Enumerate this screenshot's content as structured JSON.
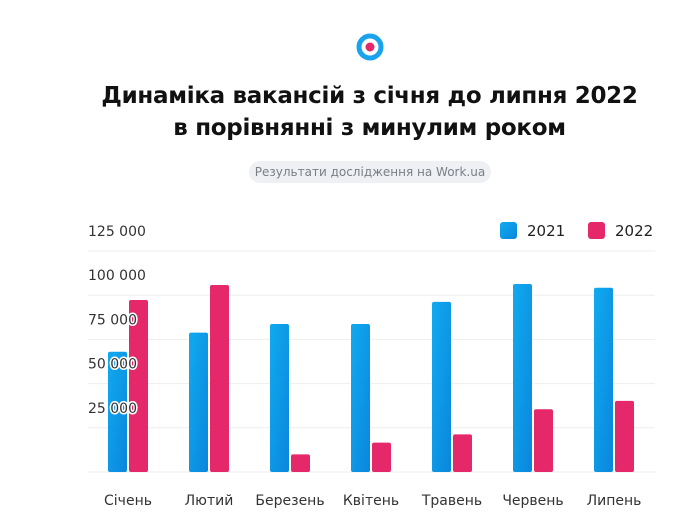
{
  "header": {
    "logo_icon": "target-icon",
    "title_line1": "Динаміка вакансій з січня до липня 2022",
    "title_line2": "в порівнянні з минулим роком",
    "subtitle": "Результати дослідження на Work.ua"
  },
  "colors": {
    "s2021": "#0a9be8",
    "s2022": "#e4286a",
    "grid": "#eeeeee"
  },
  "chart_data": {
    "type": "bar",
    "title": "Динаміка вакансій з січня до липня 2022 в порівнянні з минулим роком",
    "xlabel": "",
    "ylabel": "",
    "ylim": [
      0,
      125000
    ],
    "yticks": [
      25000,
      50000,
      75000,
      100000,
      125000
    ],
    "ytick_labels": [
      "25 000",
      "50 000",
      "75 000",
      "100 000",
      "125 000"
    ],
    "grid": true,
    "legend_position": "top-right",
    "categories": [
      "Січень",
      "Лютий",
      "Березень",
      "Квітень",
      "Травень",
      "Червень",
      "Липень"
    ],
    "series": [
      {
        "name": "2021",
        "values": [
          68000,
          78800,
          83700,
          83700,
          96200,
          106300,
          104200
        ]
      },
      {
        "name": "2022",
        "values": [
          97300,
          105800,
          10000,
          16600,
          21300,
          35500,
          40200
        ]
      }
    ]
  }
}
